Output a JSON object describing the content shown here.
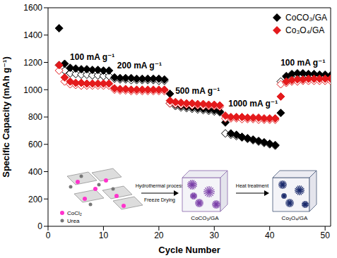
{
  "chart_data": {
    "type": "scatter",
    "x_label": "Cycle Number",
    "y_label": "Specific Capacity (mAh g⁻¹)",
    "x": [
      2,
      3,
      4,
      5,
      6,
      7,
      8,
      9,
      10,
      11,
      12,
      13,
      14,
      15,
      16,
      17,
      18,
      19,
      20,
      21,
      22,
      23,
      24,
      25,
      26,
      27,
      28,
      29,
      30,
      31,
      32,
      33,
      34,
      35,
      36,
      37,
      38,
      39,
      40,
      41,
      42,
      43,
      44,
      45,
      46,
      47,
      48,
      49,
      50,
      51
    ],
    "series": [
      {
        "name": "CoCO₃/GA",
        "color": "#000000",
        "marker": "diamond",
        "values": [
          1450,
          1190,
          1160,
          1155,
          1150,
          1150,
          1145,
          1145,
          1140,
          1140,
          1090,
          1085,
          1085,
          1085,
          1080,
          1080,
          1080,
          1080,
          1080,
          1075,
          970,
          890,
          880,
          875,
          870,
          865,
          860,
          855,
          850,
          840,
          760,
          680,
          670,
          655,
          645,
          635,
          625,
          615,
          605,
          595,
          830,
          1100,
          1115,
          1120,
          1120,
          1115,
          1115,
          1110,
          1110,
          1105
        ],
        "values_open": [
          1180,
          1140,
          1120,
          1115,
          1110,
          1110,
          1105,
          1105,
          1100,
          1100,
          1080,
          1075,
          1075,
          1070,
          1070,
          1070,
          1070,
          1070,
          1065,
          1065,
          900,
          880,
          870,
          865,
          860,
          855,
          850,
          845,
          840,
          835,
          680,
          670,
          660,
          650,
          640,
          630,
          620,
          610,
          600,
          590,
          1060,
          1095,
          1105,
          1105,
          1100,
          1100,
          1100,
          1095,
          1095,
          1090
        ]
      },
      {
        "name": "Co₃O₄/GA",
        "color": "#e41a1c",
        "marker": "diamond",
        "values": [
          1180,
          1090,
          1060,
          1050,
          1050,
          1045,
          1045,
          1045,
          1045,
          1045,
          1010,
          1005,
          1005,
          1000,
          1000,
          1000,
          1000,
          1000,
          1000,
          1000,
          920,
          910,
          905,
          900,
          900,
          895,
          895,
          890,
          890,
          885,
          810,
          800,
          800,
          800,
          795,
          795,
          795,
          790,
          790,
          790,
          950,
          1060,
          1070,
          1075,
          1075,
          1080,
          1080,
          1080,
          1080,
          1080
        ],
        "values_open": [
          1140,
          1060,
          1040,
          1035,
          1030,
          1030,
          1030,
          1030,
          1030,
          1030,
          1000,
          995,
          995,
          990,
          990,
          990,
          990,
          990,
          990,
          990,
          900,
          895,
          890,
          890,
          885,
          885,
          880,
          880,
          880,
          875,
          790,
          790,
          790,
          785,
          785,
          785,
          780,
          780,
          780,
          780,
          1040,
          1050,
          1060,
          1060,
          1065,
          1065,
          1065,
          1065,
          1065,
          1065
        ]
      }
    ],
    "xlim": [
      0,
      51
    ],
    "xticks": [
      0,
      10,
      20,
      30,
      40,
      50
    ],
    "ylim": [
      0,
      1600
    ],
    "yticks": [
      0,
      200,
      400,
      600,
      800,
      1000,
      1200,
      1400,
      1600
    ],
    "grid": false,
    "legend": "upper right",
    "annotations": [
      {
        "text": "100 mA g⁻¹",
        "x": 8,
        "y": 1240
      },
      {
        "text": "200 mA g⁻¹",
        "x": 16.5,
        "y": 1180
      },
      {
        "text": "500 mA g⁻¹",
        "x": 27,
        "y": 990
      },
      {
        "text": "1000 mA g⁻¹",
        "x": 37,
        "y": 900
      },
      {
        "text": "100 mA g⁻¹",
        "x": 46,
        "y": 1200
      }
    ],
    "inset": {
      "precursors": [
        "CoCl₂",
        "Urea"
      ],
      "step1": [
        "Hydrothermal process",
        "Freeze Drying"
      ],
      "product1": "CoCO₃/GA",
      "step2": "Heat treatment",
      "product2": "Co₃O₄/GA"
    }
  }
}
